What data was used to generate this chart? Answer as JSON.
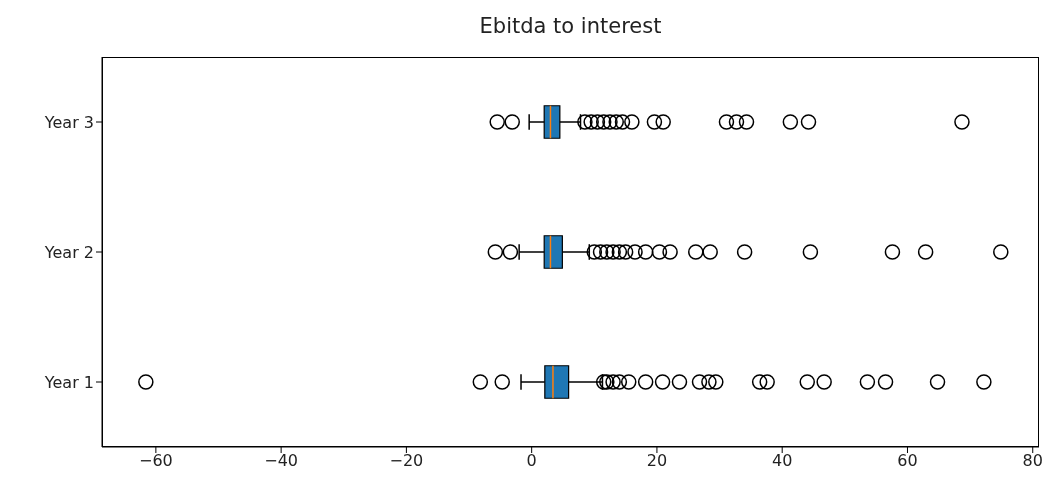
{
  "chart_data": {
    "type": "box",
    "title": "Ebitda to interest",
    "orientation": "horizontal",
    "categories": [
      "Year 3",
      "Year 2",
      "Year 1"
    ],
    "xlim": [
      -68.6,
      81
    ],
    "xticks": [
      -60,
      -40,
      -20,
      0,
      20,
      40,
      60,
      80
    ],
    "grid": false,
    "legend": false,
    "marker": "circle",
    "series": [
      {
        "color": "#1f77b4",
        "boxes": [
          {
            "low": -0.4,
            "q1": 2.0,
            "median": 3.0,
            "q3": 4.5,
            "high": 7.8,
            "outliers": [
              -5.5,
              -3.1,
              8.5,
              9.5,
              10.5,
              11.5,
              12.5,
              13.5,
              14.5,
              16,
              19.6,
              21,
              31.1,
              32.7,
              34.3,
              41.3,
              44.2,
              68.7
            ]
          },
          {
            "low": -2.0,
            "q1": 2.0,
            "median": 3.0,
            "q3": 4.9,
            "high": 9.2,
            "outliers": [
              -5.8,
              -3.4,
              10,
              11,
              12,
              13,
              14,
              15,
              16.5,
              18.2,
              20.4,
              22.1,
              26.2,
              28.5,
              34,
              44.5,
              57.6,
              62.9,
              74.9
            ]
          },
          {
            "low": -1.7,
            "q1": 2.1,
            "median": 3.4,
            "q3": 5.9,
            "high": 11.3,
            "outliers": [
              -61.6,
              -8.2,
              -4.7,
              11.5,
              12,
              13,
              14,
              15.5,
              18.2,
              20.9,
              23.6,
              26.8,
              28.3,
              29.4,
              36.4,
              37.6,
              44,
              46.7,
              53.6,
              56.5,
              64.8,
              72.2
            ]
          }
        ]
      }
    ]
  }
}
